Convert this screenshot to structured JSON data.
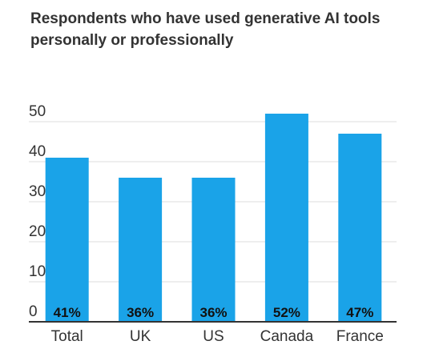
{
  "chart_data": {
    "type": "bar",
    "title": "Respondents who have used generative AI tools personally or professionally",
    "categories": [
      "Total",
      "UK",
      "US",
      "Canada",
      "France"
    ],
    "values": [
      41,
      36,
      36,
      52,
      47
    ],
    "data_labels": [
      "41%",
      "36%",
      "36%",
      "52%",
      "47%"
    ],
    "yticks": [
      0,
      10,
      20,
      30,
      40,
      50
    ],
    "ylim": [
      0,
      55
    ],
    "grid": true,
    "legend": "none",
    "colors": {
      "bar": "#1aa3e8",
      "grid": "#dddddd",
      "axis": "#333333",
      "text": "#333333"
    }
  }
}
